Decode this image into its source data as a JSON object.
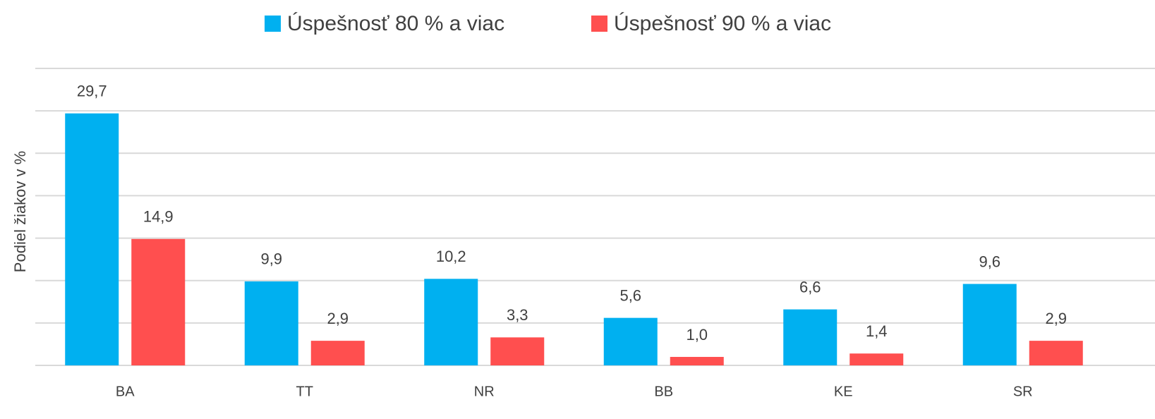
{
  "chart_data": {
    "type": "bar",
    "y_label": "Podiel žiakov v %",
    "categories": [
      "BA",
      "TT",
      "NR",
      "BB",
      "KE",
      "SR"
    ],
    "series": [
      {
        "name": "Úspešnosť 80 % a viac",
        "color": "#00b0f0",
        "values": [
          29.7,
          9.9,
          10.2,
          5.6,
          6.6,
          9.6
        ],
        "value_labels": [
          "29,7",
          "9,9",
          "10,2",
          "5,6",
          "6,6",
          "9,6"
        ]
      },
      {
        "name": "Úspešnosť 90 % a viac",
        "color": "#ff4f4f",
        "values": [
          14.9,
          2.9,
          3.3,
          1.0,
          1.4,
          2.9
        ],
        "value_labels": [
          "14,9",
          "2,9",
          "3,3",
          "1,0",
          "1,4",
          "2,9"
        ]
      }
    ],
    "ylim": [
      0,
      35
    ],
    "yticks": [
      0,
      5,
      10,
      15,
      20,
      25,
      30,
      35
    ],
    "grid": true,
    "legend": "top"
  }
}
